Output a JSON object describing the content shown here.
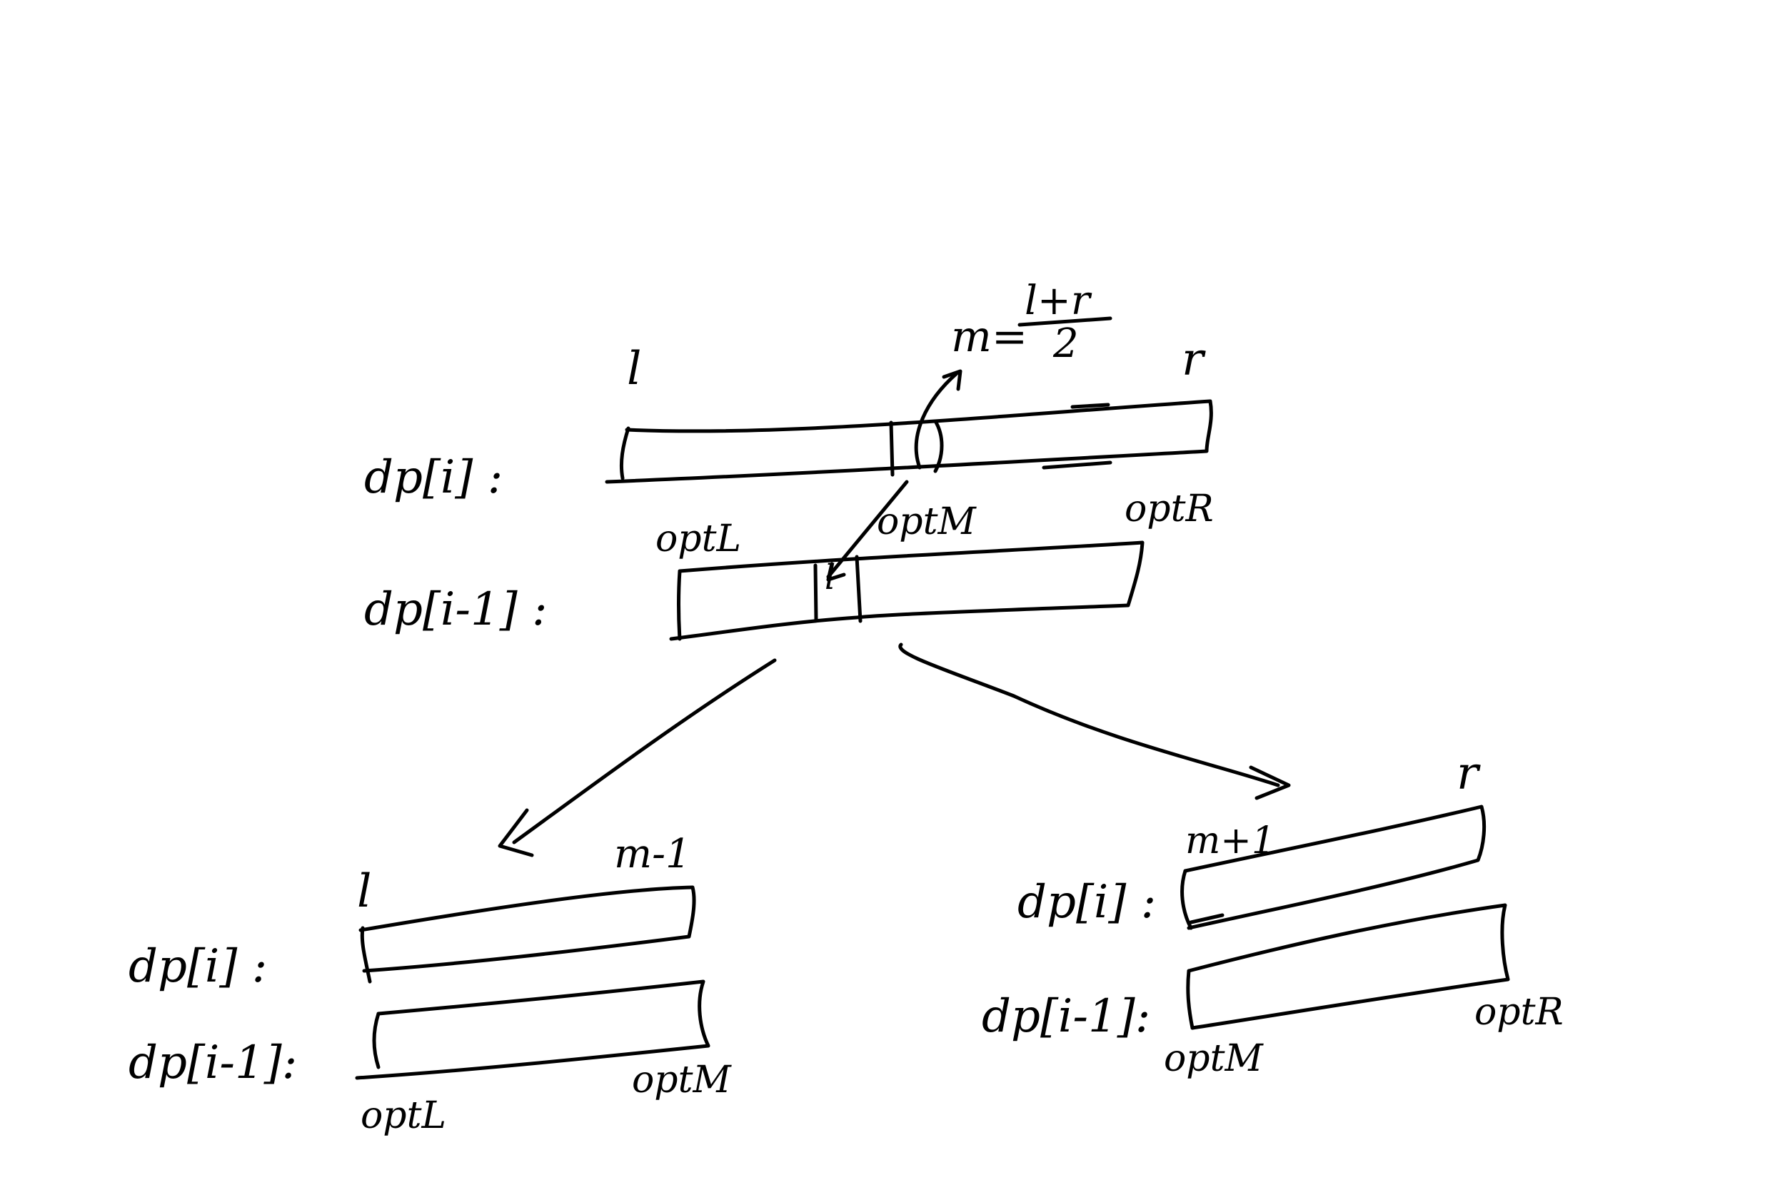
{
  "colors": {
    "background": "#ffffff",
    "ink": "#000000"
  },
  "top": {
    "row1_label": "dp[i] :",
    "row2_label": "dp[i-1] :",
    "l_label": "l",
    "r_label": "r",
    "m_formula_left": "m=",
    "m_formula_numerator": "l+r",
    "m_formula_denominator": "2",
    "optL_label": "optL",
    "optM_label": "optM",
    "optR_label": "optR",
    "mark_label": "l"
  },
  "left": {
    "row1_label": "dp[i] :",
    "row2_label": "dp[i-1]:",
    "l_label": "l",
    "m1_label": "m-1",
    "optL_label": "optL",
    "optM_label": "optM"
  },
  "right": {
    "row1_label": "dp[i] :",
    "row2_label": "dp[i-1]:",
    "m1_label": "m+1",
    "r_label": "r",
    "optM_label": "optM",
    "optR_label": "optR"
  }
}
